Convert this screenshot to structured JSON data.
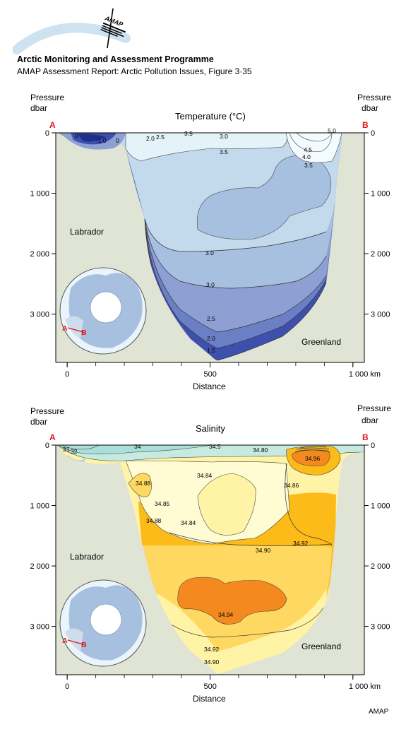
{
  "header": {
    "title": "Arctic Monitoring and Assessment Programme",
    "subtitle": "AMAP Assessment Report: Arctic Pollution Issues, Figure 3·35",
    "logo_text": "AMAP"
  },
  "footer": {
    "credit": "AMAP"
  },
  "colors": {
    "land": "#dfe4d4",
    "red_markers": "#e0161d",
    "temp_fills": [
      "#3e50ae",
      "#6b7fc4",
      "#8d9fd3",
      "#a8c0e0",
      "#c3d9ec",
      "#e4f2fa"
    ],
    "sal_fills": [
      "#a9dfd8",
      "#c6eadf",
      "#fffbd3",
      "#fff4a6",
      "#ffd861",
      "#fdbb1a",
      "#f48a1f"
    ]
  },
  "chart_data": [
    {
      "type": "contour",
      "title": "Temperature (°C)",
      "ylabel_left": [
        "Pressure",
        "dbar"
      ],
      "ylabel_right": [
        "Pressure",
        "dbar"
      ],
      "xlabel": "Distance",
      "x_ticks": [
        "0",
        "500",
        "1 000 km"
      ],
      "x_tick_values": [
        0,
        500,
        1000
      ],
      "xlim": [
        -40,
        1040
      ],
      "y_ticks": [
        "0",
        "1 000",
        "2 000",
        "3 000"
      ],
      "y_tick_values": [
        0,
        1000,
        2000,
        3000
      ],
      "ylim": [
        3800,
        0
      ],
      "section_start": "A",
      "section_end": "B",
      "region_labels": [
        "Labrador",
        "Greenland"
      ],
      "map_labels": [
        "A",
        "B"
      ],
      "contour_labels": [
        "0",
        "-1.0",
        "0",
        "2.0",
        "2.5",
        "3.5",
        "3.0",
        "3.5",
        "5.0",
        "4.5",
        "4.0",
        "3.5",
        "3.0",
        "3.0",
        "2.5",
        "2.0",
        "1.5"
      ]
    },
    {
      "type": "contour",
      "title": "Salinity",
      "ylabel_left": [
        "Pressure",
        "dbar"
      ],
      "ylabel_right": [
        "Pressure",
        "dbar"
      ],
      "xlabel": "Distance",
      "x_ticks": [
        "0",
        "500",
        "1 000 km"
      ],
      "x_tick_values": [
        0,
        500,
        1000
      ],
      "xlim": [
        -40,
        1040
      ],
      "y_ticks": [
        "0",
        "1 000",
        "2 000",
        "3 000"
      ],
      "y_tick_values": [
        0,
        1000,
        2000,
        3000
      ],
      "ylim": [
        3800,
        0
      ],
      "section_start": "A",
      "section_end": "B",
      "region_labels": [
        "Labrador",
        "Greenland"
      ],
      "map_labels": [
        "A",
        "B"
      ],
      "contour_labels": [
        "31",
        "32",
        "34",
        "34.5",
        "34.80",
        "34.96",
        "34.84",
        "34.88",
        "34.85",
        "34.86",
        "34.88",
        "34.84",
        "34.90",
        "34.92",
        "34.94",
        "34.92",
        "34.90"
      ]
    }
  ]
}
